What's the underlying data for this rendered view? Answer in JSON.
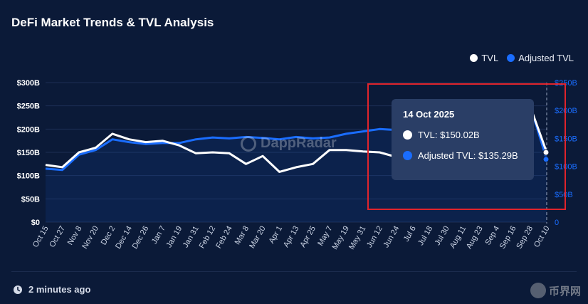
{
  "title": "DeFi Market Trends & TVL Analysis",
  "legend": [
    {
      "label": "TVL",
      "color": "#ffffff"
    },
    {
      "label": "Adjusted TVL",
      "color": "#1a6dff"
    }
  ],
  "tooltip": {
    "date": "14 Oct 2025",
    "rows": [
      {
        "label": "TVL: $150.02B",
        "color": "#ffffff"
      },
      {
        "label": "Adjusted TVL: $135.29B",
        "color": "#1a6dff"
      }
    ]
  },
  "footer": {
    "updated": "2 minutes ago"
  },
  "watermark": "DappRadar",
  "corner_logo": "币界网",
  "chart_data": {
    "type": "line",
    "x": [
      "Oct 15",
      "Oct 27",
      "Nov 8",
      "Nov 20",
      "Dec 2",
      "Dec 14",
      "Dec 26",
      "Jan 7",
      "Jan 19",
      "Jan 31",
      "Feb 12",
      "Feb 24",
      "Mar 8",
      "Mar 20",
      "Apr 1",
      "Apr 13",
      "Apr 25",
      "May 7",
      "May 19",
      "May 31",
      "Jun 12",
      "Jun 24",
      "Jul 6",
      "Jul 18",
      "Jul 30",
      "Aug 11",
      "Aug 23",
      "Sep 4",
      "Sep 16",
      "Sep 28",
      "Oct 10"
    ],
    "y_left": {
      "ticks": [
        "$0",
        "$50B",
        "$100B",
        "$150B",
        "$200B",
        "$250B",
        "$300B"
      ],
      "range": [
        0,
        300
      ]
    },
    "y_right": {
      "ticks": [
        "0",
        "$50B",
        "$100B",
        "$150B",
        "$200B",
        "$250B"
      ],
      "range": [
        0,
        250
      ]
    },
    "grid": true,
    "legend_position": "top-right",
    "series": [
      {
        "name": "TVL",
        "color": "#ffffff",
        "values": [
          123,
          118,
          150,
          160,
          190,
          178,
          172,
          175,
          165,
          148,
          150,
          148,
          125,
          142,
          108,
          118,
          125,
          155,
          155,
          152,
          150,
          140,
          140,
          150,
          160,
          170,
          175,
          185,
          210,
          250,
          150
        ]
      },
      {
        "name": "Adjusted TVL",
        "color": "#1a6dff",
        "values": [
          115,
          112,
          145,
          155,
          178,
          172,
          168,
          170,
          170,
          178,
          182,
          180,
          183,
          181,
          178,
          183,
          180,
          182,
          190,
          195,
          200,
          198,
          185,
          190,
          190,
          195,
          205,
          210,
          230,
          252,
          135
        ]
      }
    ]
  }
}
